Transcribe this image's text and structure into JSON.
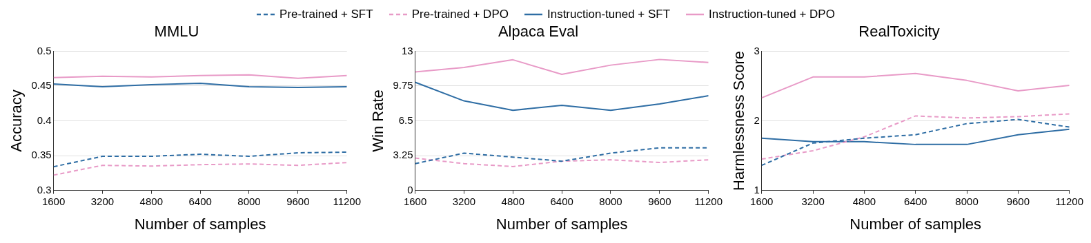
{
  "chart_data": [
    {
      "type": "line",
      "title": "MMLU",
      "xlabel": "Number of samples",
      "ylabel": "Accuracy",
      "x": [
        1600,
        3200,
        4800,
        6400,
        8000,
        9600,
        11200
      ],
      "xlim": [
        1600,
        11200
      ],
      "xticks": [
        1600,
        3200,
        4800,
        6400,
        8000,
        9600,
        11200
      ],
      "ylim": [
        0.3,
        0.5
      ],
      "yticks": [
        0.3,
        0.35,
        0.4,
        0.45,
        0.5
      ],
      "grid": "y",
      "legend": "top",
      "marker": "none",
      "series": [
        {
          "name": "Pre-trained + SFT",
          "color": "#2e6da4",
          "line_style": "dashed",
          "values": [
            0.334,
            0.349,
            0.349,
            0.352,
            0.349,
            0.354,
            0.355
          ]
        },
        {
          "name": "Pre-trained + DPO",
          "color": "#e89ac7",
          "line_style": "dashed",
          "values": [
            0.322,
            0.336,
            0.335,
            0.337,
            0.338,
            0.336,
            0.34
          ]
        },
        {
          "name": "Instruction-tuned + SFT",
          "color": "#2e6da4",
          "line_style": "solid",
          "values": [
            0.453,
            0.449,
            0.452,
            0.454,
            0.449,
            0.448,
            0.449
          ]
        },
        {
          "name": "Instruction-tuned + DPO",
          "color": "#e89ac7",
          "line_style": "solid",
          "values": [
            0.462,
            0.464,
            0.463,
            0.465,
            0.466,
            0.461,
            0.465
          ]
        }
      ]
    },
    {
      "type": "line",
      "title": "Alpaca Eval",
      "xlabel": "Number of samples",
      "ylabel": "Win Rate",
      "x": [
        1600,
        3200,
        4800,
        6400,
        8000,
        9600,
        11200
      ],
      "xlim": [
        1600,
        11200
      ],
      "xticks": [
        1600,
        3200,
        4800,
        6400,
        8000,
        9600,
        11200
      ],
      "ylim": [
        0,
        13
      ],
      "yticks": [
        0,
        3.25,
        6.5,
        9.75,
        13
      ],
      "grid": "y",
      "legend": "top",
      "marker": "none",
      "series": [
        {
          "name": "Pre-trained + SFT",
          "color": "#2e6da4",
          "line_style": "dashed",
          "values": [
            2.5,
            3.48,
            3.11,
            2.73,
            3.48,
            3.98,
            3.98
          ]
        },
        {
          "name": "Pre-trained + DPO",
          "color": "#e89ac7",
          "line_style": "dashed",
          "values": [
            3.02,
            2.5,
            2.23,
            2.73,
            2.86,
            2.61,
            2.86
          ]
        },
        {
          "name": "Instruction-tuned + SFT",
          "color": "#2e6da4",
          "line_style": "solid",
          "values": [
            10.1,
            8.36,
            7.48,
            7.95,
            7.48,
            8.07,
            8.84
          ]
        },
        {
          "name": "Instruction-tuned + DPO",
          "color": "#e89ac7",
          "line_style": "solid",
          "values": [
            11.07,
            11.48,
            12.2,
            10.84,
            11.7,
            12.23,
            11.95
          ]
        }
      ]
    },
    {
      "type": "line",
      "title": "RealToxicity",
      "xlabel": "Number of samples",
      "ylabel": "Harmlessness Score",
      "x": [
        1600,
        3200,
        4800,
        6400,
        8000,
        9600,
        11200
      ],
      "xlim": [
        1600,
        11200
      ],
      "xticks": [
        1600,
        3200,
        4800,
        6400,
        8000,
        9600,
        11200
      ],
      "ylim": [
        1,
        3
      ],
      "yticks": [
        1,
        2,
        3
      ],
      "grid": "y",
      "legend": "top",
      "marker": "none",
      "series": [
        {
          "name": "Pre-trained + SFT",
          "color": "#2e6da4",
          "line_style": "dashed",
          "values": [
            1.36,
            1.68,
            1.75,
            1.8,
            1.96,
            2.02,
            1.91
          ]
        },
        {
          "name": "Pre-trained + DPO",
          "color": "#e89ac7",
          "line_style": "dashed",
          "values": [
            1.45,
            1.57,
            1.77,
            2.07,
            2.04,
            2.06,
            2.1
          ]
        },
        {
          "name": "Instruction-tuned + SFT",
          "color": "#2e6da4",
          "line_style": "solid",
          "values": [
            1.75,
            1.7,
            1.7,
            1.66,
            1.66,
            1.8,
            1.88
          ]
        },
        {
          "name": "Instruction-tuned + DPO",
          "color": "#e89ac7",
          "line_style": "solid",
          "values": [
            2.33,
            2.63,
            2.63,
            2.68,
            2.58,
            2.43,
            2.51
          ]
        }
      ]
    }
  ]
}
